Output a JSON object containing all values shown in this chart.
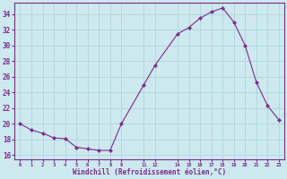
{
  "x": [
    0,
    1,
    2,
    3,
    4,
    5,
    6,
    7,
    8,
    9,
    11,
    12,
    14,
    15,
    16,
    17,
    18,
    19,
    20,
    21,
    22,
    23
  ],
  "y": [
    20.0,
    19.2,
    18.8,
    18.2,
    18.1,
    17.0,
    16.8,
    16.6,
    16.6,
    20.0,
    25.0,
    27.5,
    31.5,
    32.3,
    33.5,
    34.3,
    34.8,
    33.0,
    30.0,
    25.3,
    22.3,
    20.5
  ],
  "line_color": "#7b2d8b",
  "marker_color": "#7b2d8b",
  "bg_color": "#cde8ee",
  "grid_color": "#b0d8e0",
  "xlabel": "Windchill (Refroidissement éolien,°C)",
  "xlabel_color": "#7b2d8b",
  "tick_color": "#7b2d8b",
  "ylim": [
    15.5,
    35.5
  ],
  "xlim": [
    -0.5,
    23.5
  ],
  "yticks": [
    16,
    18,
    20,
    22,
    24,
    26,
    28,
    30,
    32,
    34
  ],
  "xtick_positions": [
    0,
    1,
    2,
    3,
    4,
    5,
    6,
    7,
    8,
    9,
    11,
    12,
    14,
    15,
    16,
    17,
    18,
    19,
    20,
    21,
    22,
    23
  ],
  "xtick_labels": [
    "0",
    "1",
    "2",
    "3",
    "4",
    "5",
    "6",
    "7",
    "8",
    "9",
    "11",
    "12",
    "14",
    "15",
    "16",
    "17",
    "18",
    "19",
    "20",
    "21",
    "22",
    "23"
  ]
}
